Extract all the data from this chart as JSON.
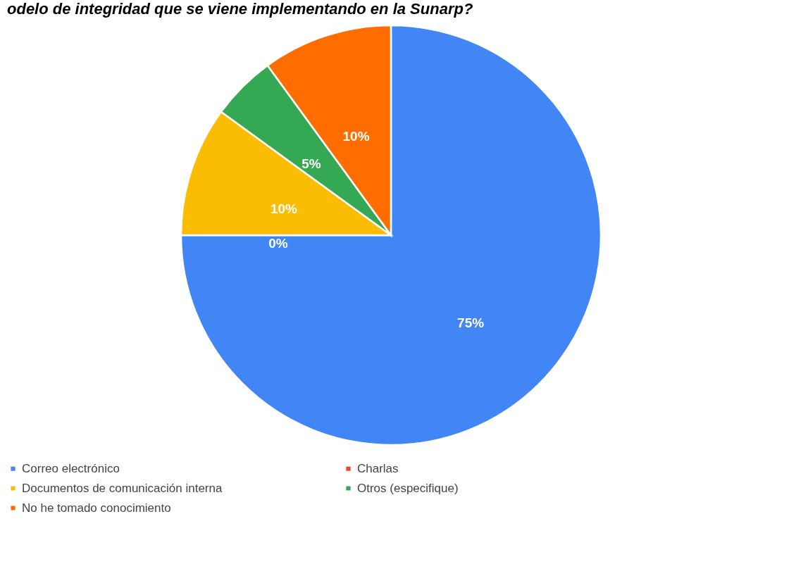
{
  "chart_data": {
    "type": "pie",
    "title": "odelo de integridad que se viene implementando en la Sunarp?",
    "categories": [
      "Correo electrónico",
      "Charlas",
      "Documentos de comunicación interna",
      "Otros (especifique)",
      "No he tomado conocimiento"
    ],
    "values": [
      75,
      0,
      10,
      5,
      10
    ],
    "colors": [
      "#4285f4",
      "#ea4335",
      "#fbbc04",
      "#34a853",
      "#ff6d01"
    ],
    "value_labels": [
      "75%",
      "0%",
      "10%",
      "5%",
      "10%"
    ],
    "legend": "bottom"
  }
}
